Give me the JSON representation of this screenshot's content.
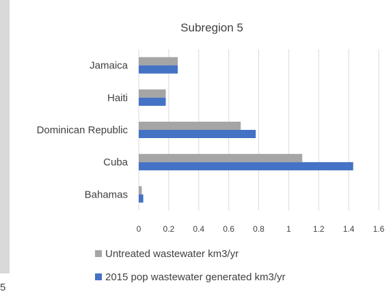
{
  "edge_glyph": "5",
  "chart_data": {
    "type": "bar",
    "orientation": "horizontal",
    "title": "Subregion 5",
    "categories": [
      "Bahamas",
      "Cuba",
      "Dominican Republic",
      "Haiti",
      "Jamaica"
    ],
    "category_labels": [
      "Bahamas",
      "Cuba ",
      "Dominican Republic",
      "Haiti ",
      "Jamaica"
    ],
    "series": [
      {
        "name": "2015 pop wastewater generated  km3/yr",
        "color": "#4472c4",
        "values": [
          0.03,
          1.43,
          0.78,
          0.18,
          0.26
        ]
      },
      {
        "name": "Untreated wastewater km3/yr",
        "color": "#a5a5a5",
        "values": [
          0.02,
          1.09,
          0.68,
          0.18,
          0.26
        ]
      }
    ],
    "xlim": [
      0,
      1.6
    ],
    "xticks": [
      "0",
      "0.2",
      "0.4",
      "0.6",
      "0.8",
      "1",
      "1.2",
      "1.4",
      "1.6"
    ],
    "grid": true,
    "legend": {
      "position": "bottom",
      "entries": [
        "Untreated wastewater km3/yr",
        "2015 pop wastewater generated  km3/yr"
      ]
    },
    "xlabel": "",
    "ylabel": ""
  }
}
